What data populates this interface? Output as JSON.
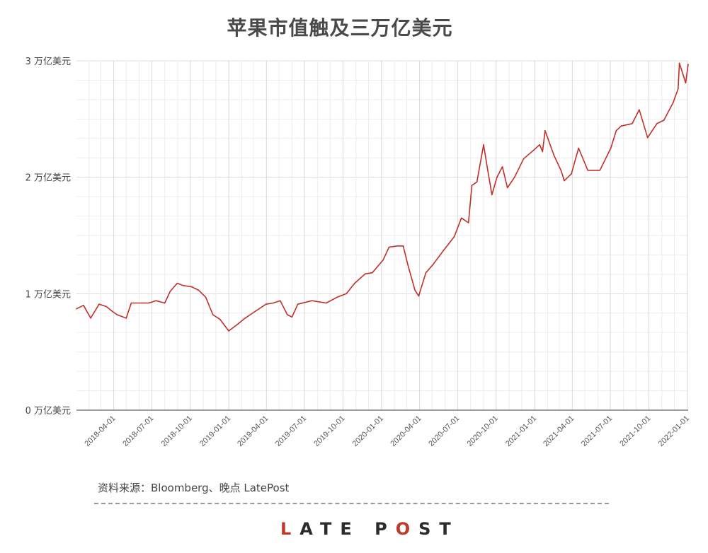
{
  "chart_data": {
    "type": "line",
    "title": "苹果市值触及三万亿美元",
    "xlabel": "",
    "ylabel": "",
    "x_range": [
      "2018-01-02",
      "2022-01-03"
    ],
    "ylim": [
      0,
      3
    ],
    "y_unit": "万亿美元",
    "y_ticks": [
      {
        "value": 0,
        "label": "0 万亿美元"
      },
      {
        "value": 1,
        "label": "1 万亿美元"
      },
      {
        "value": 2,
        "label": "2 万亿美元"
      },
      {
        "value": 3,
        "label": "3 万亿美元"
      }
    ],
    "x_ticks": [
      "2018-04-01",
      "2018-07-01",
      "2018-10-01",
      "2019-01-01",
      "2019-04-01",
      "2019-07-01",
      "2019-10-01",
      "2020-01-01",
      "2020-04-01",
      "2020-07-01",
      "2020-10-01",
      "2021-01-01",
      "2021-04-01",
      "2021-07-01",
      "2021-10-01",
      "2022-01-01"
    ],
    "grid": true,
    "line_color": "#c0302a",
    "series": [
      {
        "x": [
          "2018-01-02",
          "2018-01-19",
          "2018-02-05",
          "2018-02-25",
          "2018-03-14",
          "2018-03-28",
          "2018-04-09",
          "2018-05-01",
          "2018-05-13",
          "2018-06-07",
          "2018-06-24",
          "2018-07-11",
          "2018-08-01",
          "2018-08-14",
          "2018-08-31",
          "2018-09-14",
          "2018-10-04",
          "2018-10-21",
          "2018-11-07",
          "2018-11-24",
          "2018-12-11",
          "2019-01-01",
          "2019-01-23",
          "2019-02-09",
          "2019-03-06",
          "2019-03-31",
          "2019-04-17",
          "2019-05-04",
          "2019-05-21",
          "2019-06-01",
          "2019-06-15",
          "2019-07-19",
          "2019-08-22",
          "2019-09-17",
          "2019-10-09",
          "2019-10-29",
          "2019-11-23",
          "2019-12-10",
          "2020-01-05",
          "2020-01-19",
          "2020-02-08",
          "2020-02-22",
          "2020-03-04",
          "2020-03-21",
          "2020-03-30",
          "2020-04-16",
          "2020-05-03",
          "2020-05-28",
          "2020-06-23",
          "2020-07-10",
          "2020-07-27",
          "2020-08-04",
          "2020-08-16",
          "2020-08-26",
          "2020-09-01",
          "2020-09-11",
          "2020-09-21",
          "2020-10-03",
          "2020-10-16",
          "2020-10-28",
          "2020-11-14",
          "2020-12-06",
          "2020-12-29",
          "2021-01-13",
          "2021-01-20",
          "2021-01-26",
          "2021-02-16",
          "2021-03-05",
          "2021-03-13",
          "2021-03-30",
          "2021-04-16",
          "2021-05-08",
          "2021-06-06",
          "2021-07-02",
          "2021-07-15",
          "2021-07-27",
          "2021-08-22",
          "2021-09-08",
          "2021-09-28",
          "2021-10-20",
          "2021-11-06",
          "2021-11-28",
          "2021-12-10",
          "2021-12-13",
          "2021-12-28",
          "2022-01-03"
        ],
        "y": [
          0.87,
          0.9,
          0.79,
          0.91,
          0.89,
          0.85,
          0.82,
          0.79,
          0.92,
          0.92,
          0.92,
          0.94,
          0.92,
          1.02,
          1.09,
          1.07,
          1.06,
          1.03,
          0.97,
          0.82,
          0.78,
          0.68,
          0.74,
          0.79,
          0.85,
          0.91,
          0.92,
          0.94,
          0.82,
          0.8,
          0.91,
          0.94,
          0.92,
          0.97,
          1.0,
          1.09,
          1.17,
          1.18,
          1.29,
          1.4,
          1.41,
          1.41,
          1.25,
          1.03,
          0.98,
          1.18,
          1.25,
          1.37,
          1.49,
          1.65,
          1.61,
          1.93,
          1.96,
          2.16,
          2.28,
          2.06,
          1.85,
          2.0,
          2.09,
          1.91,
          2.0,
          2.16,
          2.23,
          2.28,
          2.22,
          2.4,
          2.19,
          2.06,
          1.97,
          2.03,
          2.25,
          2.06,
          2.06,
          2.25,
          2.4,
          2.44,
          2.46,
          2.58,
          2.34,
          2.46,
          2.49,
          2.64,
          2.76,
          2.98,
          2.81,
          2.97
        ]
      }
    ]
  },
  "source_text": "资料来源：Bloomberg、晚点 LatePost",
  "logo": {
    "text": "LATE POST",
    "accent_color": "#c0392b"
  }
}
